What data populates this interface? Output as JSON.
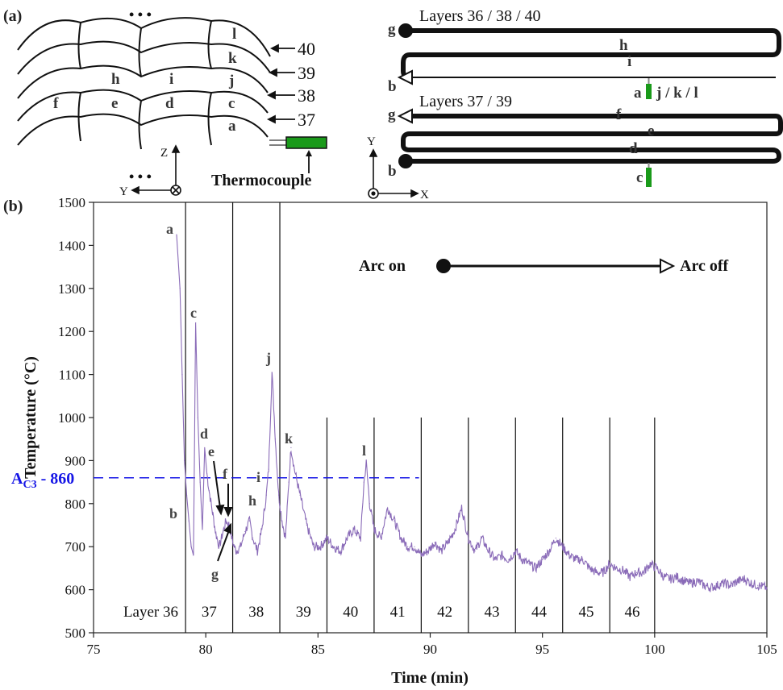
{
  "panel_a": {
    "label": "(a)",
    "dots": "• • •",
    "layer_numbers": [
      "40",
      "39",
      "38",
      "37"
    ],
    "bead_letters": [
      "l",
      "k",
      "j",
      "i",
      "h",
      "f",
      "e",
      "d",
      "c",
      "a"
    ],
    "thermocouple_label": "Thermocouple",
    "axis_z": "Z",
    "axis_y": "Y",
    "path_top": {
      "title": "Layers 36 / 38 / 40",
      "letters": [
        "g",
        "h",
        "i",
        "b",
        "a",
        "j / k / l"
      ]
    },
    "path_bottom": {
      "title": "Layers 37 / 39",
      "letters": [
        "g",
        "f",
        "e",
        "d",
        "b",
        "c"
      ]
    },
    "axis_x2": "X",
    "axis_y2": "Y",
    "thermocouple_color": "#1a9a1a"
  },
  "panel_b": {
    "label": "(b)",
    "arc_on": "Arc on",
    "arc_off": "Arc off",
    "ac3_main": "A",
    "ac3_sub": "C3",
    "ac3_rest": " - 860",
    "ac3_color": "#1414e6",
    "layer_labels": [
      "Layer 36",
      "37",
      "38",
      "39",
      "40",
      "41",
      "42",
      "43",
      "44",
      "45",
      "46"
    ],
    "peak_labels": [
      "a",
      "b",
      "c",
      "d",
      "e",
      "f",
      "g",
      "h",
      "i",
      "j",
      "k",
      "l"
    ]
  },
  "chart_data": {
    "type": "line",
    "xlabel": "Time (min)",
    "ylabel": "Temperature (°C)",
    "xlim": [
      75,
      105
    ],
    "ylim": [
      500,
      1500
    ],
    "xticks": [
      75,
      80,
      85,
      90,
      95,
      100,
      105
    ],
    "yticks": [
      500,
      600,
      700,
      800,
      900,
      1000,
      1100,
      1200,
      1300,
      1400,
      1500
    ],
    "series_color": "#8a6bb8",
    "reference_line": {
      "label": "AC3 - 860",
      "y": 860,
      "x_range": [
        75,
        89.5
      ],
      "color": "#1414e6",
      "style": "dashed"
    },
    "layer_boundaries": [
      79.1,
      81.2,
      83.3,
      85.4,
      87.5,
      89.6,
      91.7,
      93.8,
      95.9,
      98.0,
      100.0
    ],
    "series": [
      {
        "values": [
          [
            78.7,
            1425
          ],
          [
            78.85,
            1300
          ],
          [
            78.95,
            1100
          ],
          [
            79.05,
            900
          ],
          [
            79.15,
            820
          ],
          [
            79.25,
            760
          ],
          [
            79.35,
            700
          ],
          [
            79.45,
            680
          ],
          [
            79.55,
            1220
          ],
          [
            79.65,
            1000
          ],
          [
            79.75,
            850
          ],
          [
            79.85,
            740
          ],
          [
            79.95,
            930
          ],
          [
            80.05,
            870
          ],
          [
            80.15,
            830
          ],
          [
            80.3,
            780
          ],
          [
            80.45,
            730
          ],
          [
            80.6,
            700
          ],
          [
            80.75,
            730
          ],
          [
            80.9,
            760
          ],
          [
            81.05,
            750
          ],
          [
            81.2,
            710
          ],
          [
            81.35,
            690
          ],
          [
            81.55,
            700
          ],
          [
            81.75,
            735
          ],
          [
            81.95,
            760
          ],
          [
            82.1,
            720
          ],
          [
            82.3,
            690
          ],
          [
            82.5,
            740
          ],
          [
            82.7,
            820
          ],
          [
            82.8,
            880
          ],
          [
            82.95,
            1105
          ],
          [
            83.1,
            950
          ],
          [
            83.25,
            820
          ],
          [
            83.4,
            760
          ],
          [
            83.55,
            720
          ],
          [
            83.7,
            850
          ],
          [
            83.8,
            930
          ],
          [
            83.95,
            880
          ],
          [
            84.2,
            820
          ],
          [
            84.5,
            750
          ],
          [
            84.8,
            700
          ],
          [
            85.1,
            700
          ],
          [
            85.4,
            720
          ],
          [
            85.7,
            700
          ],
          [
            86.0,
            690
          ],
          [
            86.3,
            720
          ],
          [
            86.6,
            740
          ],
          [
            86.9,
            720
          ],
          [
            87.05,
            850
          ],
          [
            87.15,
            895
          ],
          [
            87.3,
            800
          ],
          [
            87.5,
            740
          ],
          [
            87.8,
            720
          ],
          [
            88.1,
            790
          ],
          [
            88.4,
            760
          ],
          [
            88.7,
            720
          ],
          [
            89.0,
            700
          ],
          [
            89.3,
            700
          ],
          [
            89.6,
            680
          ],
          [
            89.9,
            690
          ],
          [
            90.2,
            710
          ],
          [
            90.5,
            690
          ],
          [
            90.8,
            710
          ],
          [
            91.1,
            740
          ],
          [
            91.4,
            790
          ],
          [
            91.7,
            720
          ],
          [
            92.0,
            690
          ],
          [
            92.3,
            720
          ],
          [
            92.6,
            690
          ],
          [
            92.9,
            670
          ],
          [
            93.2,
            680
          ],
          [
            93.5,
            670
          ],
          [
            93.8,
            690
          ],
          [
            94.1,
            670
          ],
          [
            94.4,
            660
          ],
          [
            94.7,
            650
          ],
          [
            95.0,
            670
          ],
          [
            95.3,
            690
          ],
          [
            95.6,
            720
          ],
          [
            95.9,
            700
          ],
          [
            96.2,
            680
          ],
          [
            96.5,
            670
          ],
          [
            96.8,
            670
          ],
          [
            97.1,
            650
          ],
          [
            97.4,
            640
          ],
          [
            97.7,
            640
          ],
          [
            98.0,
            660
          ],
          [
            98.3,
            650
          ],
          [
            98.6,
            645
          ],
          [
            98.9,
            630
          ],
          [
            99.2,
            640
          ],
          [
            99.5,
            640
          ],
          [
            99.8,
            660
          ],
          [
            100.1,
            650
          ],
          [
            100.4,
            630
          ],
          [
            100.7,
            625
          ],
          [
            101.0,
            630
          ],
          [
            101.3,
            620
          ],
          [
            101.6,
            615
          ],
          [
            101.9,
            620
          ],
          [
            102.2,
            610
          ],
          [
            102.5,
            605
          ],
          [
            102.8,
            610
          ],
          [
            103.1,
            615
          ],
          [
            103.4,
            610
          ],
          [
            103.7,
            620
          ],
          [
            104.0,
            625
          ],
          [
            104.3,
            615
          ],
          [
            104.6,
            610
          ],
          [
            105.0,
            605
          ]
        ]
      }
    ]
  }
}
